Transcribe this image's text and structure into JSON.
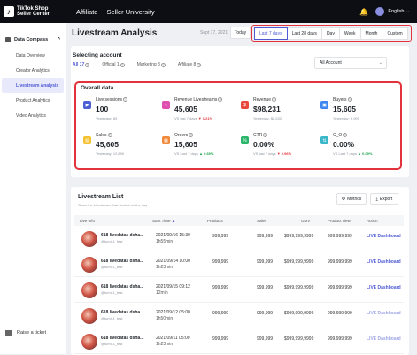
{
  "topbar": {
    "logo_line1": "TikTok Shop",
    "logo_line2": "Seller Center",
    "nav": [
      "Affiliate",
      "Seller University"
    ],
    "language": "English"
  },
  "sidebar": {
    "section": "Data Compass",
    "items": [
      {
        "label": "Data Overview"
      },
      {
        "label": "Creator Analytics"
      },
      {
        "label": "Livestream Analysis"
      },
      {
        "label": "Product Analytics"
      },
      {
        "label": "Video Analytics"
      }
    ],
    "footer": "Raise a ticket"
  },
  "header": {
    "title": "Livestream Analysis",
    "date": "Sept 17, 2021",
    "today": "Today",
    "ranges": [
      "Last 7 days",
      "Last 28 days",
      "Day",
      "Week",
      "Month",
      "Custom"
    ],
    "selected_range": "Last 7 days"
  },
  "account": {
    "title": "Selecting account",
    "tabs": [
      "All 17",
      "Official 1",
      "Marketing 8",
      "Affiliate 8"
    ],
    "selected_tab": "All 17",
    "select_value": "All Account"
  },
  "overview": {
    "title": "Overall data",
    "metrics": [
      {
        "label": "Live sessions",
        "value": "100",
        "sub": "Yesterday: 89",
        "delta": "",
        "dir": "",
        "icon": "video-icon",
        "color": "#4c5fd5"
      },
      {
        "label": "Revenue Livestreams",
        "value": "45,605",
        "sub": "VS last 7 days",
        "delta": "1.21%",
        "dir": "down",
        "icon": "chart-icon",
        "color": "#e04fb0"
      },
      {
        "label": "Revenue",
        "value": "$98,231",
        "sub": "Yesterday: $8,532",
        "delta": "",
        "dir": "",
        "icon": "money-icon",
        "color": "#e8473c"
      },
      {
        "label": "Buyers",
        "value": "15,605",
        "sub": "Yesterday: 9,999",
        "delta": "",
        "dir": "",
        "icon": "buyers-icon",
        "color": "#3d86f0"
      },
      {
        "label": "Sales",
        "value": "45,605",
        "sub": "Yesterday: 12,890",
        "delta": "",
        "dir": "",
        "icon": "sales-icon",
        "color": "#f4c230"
      },
      {
        "label": "Orders",
        "value": "15,605",
        "sub": "VS Last 7 days",
        "delta": "0.69%",
        "dir": "up",
        "icon": "orders-icon",
        "color": "#f08a3a"
      },
      {
        "label": "CTR",
        "value": "0.00%",
        "sub": "VS last 7 days",
        "delta": "0.96%",
        "dir": "down",
        "icon": "ctr-icon",
        "color": "#2bb56a"
      },
      {
        "label": "C_O",
        "value": "0.00%",
        "sub": "VS Last 7 days",
        "delta": "0.09%",
        "dir": "up",
        "icon": "conversion-icon",
        "color": "#3ab7c8"
      }
    ]
  },
  "list": {
    "title": "Livestream List",
    "subtitle": "Show the Livestream that started on the day",
    "metrics_btn": "Metrics",
    "export_btn": "Export",
    "columns": [
      "Live Info",
      "Start Time",
      "Products",
      "Sales",
      "GMV",
      "Product view",
      "Action"
    ],
    "rows": [
      {
        "name": "618 livedatas dsha...",
        "handle": "@tumi11_test",
        "time": "2021/09/16 15:30",
        "duration": "1h55min",
        "products": "999,999",
        "sales": "999,999",
        "gmv": "$999,999,9999",
        "views": "999,999,999",
        "action": "LIVE Dashboard",
        "muted": false
      },
      {
        "name": "618 livedatas dsha...",
        "handle": "@tumi11_test",
        "time": "2021/09/14 10:00",
        "duration": "1h23min",
        "products": "999,999",
        "sales": "999,999",
        "gmv": "$999,999,9999",
        "views": "999,999,999",
        "action": "LIVE Dashboard",
        "muted": false
      },
      {
        "name": "618 livedatas dsha...",
        "handle": "@tumi11_test",
        "time": "2021/09/15 09:12",
        "duration": "12min",
        "products": "999,999",
        "sales": "999,999",
        "gmv": "$999,999,9999",
        "views": "999,999,999",
        "action": "LIVE Dashboard",
        "muted": false
      },
      {
        "name": "618 livedatas dsha...",
        "handle": "@tumi11_test",
        "time": "2021/09/12 05:00",
        "duration": "1h50min",
        "products": "999,999",
        "sales": "999,999",
        "gmv": "$999,999,9999",
        "views": "999,999,999",
        "action": "LIVE Dashboard",
        "muted": true
      },
      {
        "name": "618 livedatas dsha...",
        "handle": "@tumi11_test",
        "time": "2021/09/11 05:00",
        "duration": "1h23min",
        "products": "999,999",
        "sales": "999,999",
        "gmv": "$999,999,9999",
        "views": "999,999,999",
        "action": "LIVE Dashboard",
        "muted": true
      }
    ]
  }
}
